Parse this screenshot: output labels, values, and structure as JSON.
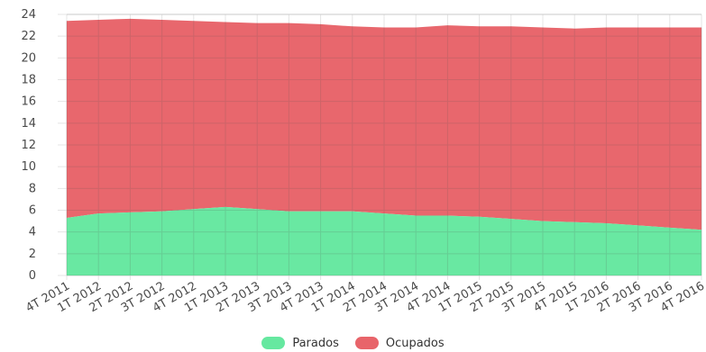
{
  "chart_data": {
    "type": "area",
    "stacked": true,
    "title": "",
    "xlabel": "",
    "ylabel": "",
    "ylim": [
      0,
      24
    ],
    "yticks": [
      0,
      2,
      4,
      6,
      8,
      10,
      12,
      14,
      16,
      18,
      20,
      22,
      24
    ],
    "grid": true,
    "legend_position": "bottom",
    "categories": [
      "4T 2011",
      "1T 2012",
      "2T 2012",
      "3T 2012",
      "4T 2012",
      "1T 2013",
      "2T 2013",
      "3T 2013",
      "4T 2013",
      "1T 2014",
      "2T 2014",
      "3T 2014",
      "4T 2014",
      "1T 2015",
      "2T 2015",
      "3T 2015",
      "4T 2015",
      "1T 2016",
      "2T 2016",
      "3T 2016",
      "4T 2016"
    ],
    "series": [
      {
        "name": "Parados",
        "color": "#66e8a0",
        "values": [
          5.3,
          5.7,
          5.8,
          5.9,
          6.1,
          6.3,
          6.1,
          5.9,
          5.9,
          5.9,
          5.7,
          5.5,
          5.5,
          5.4,
          5.2,
          5.0,
          4.9,
          4.8,
          4.6,
          4.4,
          4.2
        ]
      },
      {
        "name": "Ocupados",
        "color": "#e8646a",
        "values": [
          18.1,
          17.8,
          17.8,
          17.6,
          17.3,
          17.0,
          17.1,
          17.3,
          17.2,
          17.0,
          17.1,
          17.3,
          17.5,
          17.5,
          17.7,
          17.8,
          17.8,
          18.0,
          18.2,
          18.4,
          18.6
        ]
      }
    ]
  }
}
